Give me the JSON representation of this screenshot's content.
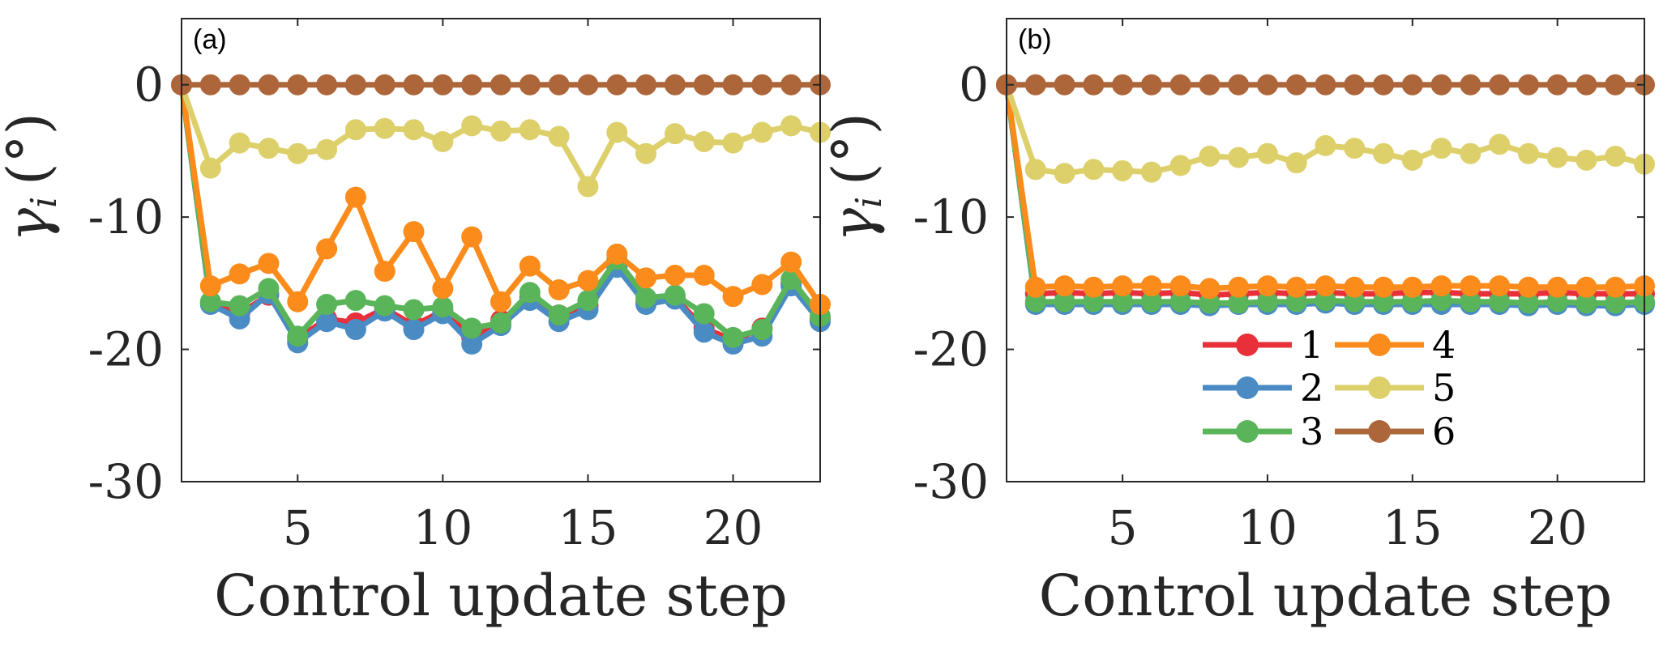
{
  "chart_data": [
    {
      "type": "line",
      "panel_label": "(a)",
      "title": "",
      "xlabel": "Control update step",
      "ylabel": "γ_i (°)",
      "ylabel_main": "γ",
      "ylabel_sub": "i",
      "ylabel_unit": "(°)",
      "xlim": [
        1,
        23
      ],
      "ylim": [
        -30,
        5
      ],
      "xticks": [
        5,
        10,
        15,
        20
      ],
      "xtick_labels": [
        "5",
        "10",
        "15",
        "20"
      ],
      "yticks": [
        0,
        -10,
        -20,
        -30
      ],
      "ytick_labels": [
        "0",
        "-10",
        "-20",
        "-30"
      ],
      "grid": false,
      "legend": false,
      "x": [
        1,
        2,
        3,
        4,
        5,
        6,
        7,
        8,
        9,
        10,
        11,
        12,
        13,
        14,
        15,
        16,
        17,
        18,
        19,
        20,
        21,
        22,
        23
      ],
      "series": [
        {
          "name": "1",
          "color": "#e8303a",
          "values": [
            0,
            -16.5,
            -17.3,
            -15.9,
            -19.2,
            -17.7,
            -18.0,
            -16.9,
            -18.2,
            -17.1,
            -19.1,
            -17.8,
            -16.1,
            -17.4,
            -16.7,
            -13.5,
            -16.4,
            -16.1,
            -18.4,
            -19.3,
            -18.4,
            -15.0,
            -17.7
          ]
        },
        {
          "name": "2",
          "color": "#4a8bc4",
          "values": [
            0,
            -16.6,
            -17.7,
            -15.8,
            -19.5,
            -17.9,
            -18.5,
            -17.1,
            -18.5,
            -17.3,
            -19.6,
            -18.2,
            -16.3,
            -17.9,
            -17.0,
            -13.8,
            -16.6,
            -16.2,
            -18.7,
            -19.6,
            -19.0,
            -15.2,
            -17.9
          ]
        },
        {
          "name": "3",
          "color": "#5ab55a",
          "values": [
            0,
            -16.4,
            -16.7,
            -15.4,
            -19.0,
            -16.6,
            -16.3,
            -16.7,
            -17.0,
            -16.8,
            -18.4,
            -18.0,
            -15.7,
            -17.4,
            -16.3,
            -13.2,
            -16.1,
            -15.9,
            -17.3,
            -19.1,
            -18.5,
            -14.7,
            -17.5
          ]
        },
        {
          "name": "4",
          "color": "#fb8b1a",
          "values": [
            0,
            -15.2,
            -14.3,
            -13.5,
            -16.4,
            -12.4,
            -8.5,
            -14.1,
            -11.1,
            -15.4,
            -11.5,
            -16.4,
            -13.7,
            -15.5,
            -14.8,
            -12.8,
            -14.6,
            -14.4,
            -14.4,
            -16.0,
            -15.1,
            -13.4,
            -16.6
          ]
        },
        {
          "name": "5",
          "color": "#ddd06b",
          "values": [
            0,
            -6.3,
            -4.4,
            -4.8,
            -5.2,
            -4.9,
            -3.4,
            -3.3,
            -3.4,
            -4.3,
            -3.1,
            -3.5,
            -3.4,
            -3.9,
            -7.7,
            -3.6,
            -5.2,
            -3.7,
            -4.3,
            -4.4,
            -3.6,
            -3.1,
            -3.6
          ]
        },
        {
          "name": "6",
          "color": "#ad653a",
          "values": [
            0,
            0,
            0,
            0,
            0,
            0,
            0,
            0,
            0,
            0,
            0,
            0,
            0,
            0,
            0,
            0,
            0,
            0,
            0,
            0,
            0,
            0,
            0
          ]
        }
      ]
    },
    {
      "type": "line",
      "panel_label": "(b)",
      "title": "",
      "xlabel": "Control update step",
      "ylabel": "γ_i (°)",
      "ylabel_main": "γ",
      "ylabel_sub": "i",
      "ylabel_unit": "(°)",
      "xlim": [
        1,
        23
      ],
      "ylim": [
        -30,
        5
      ],
      "xticks": [
        5,
        10,
        15,
        20
      ],
      "xtick_labels": [
        "5",
        "10",
        "15",
        "20"
      ],
      "yticks": [
        0,
        -10,
        -20,
        -30
      ],
      "ytick_labels": [
        "0",
        "-10",
        "-20",
        "-30"
      ],
      "grid": false,
      "legend": true,
      "legend_position": "lower-center",
      "legend_columns": 2,
      "x": [
        1,
        2,
        3,
        4,
        5,
        6,
        7,
        8,
        9,
        10,
        11,
        12,
        13,
        14,
        15,
        16,
        17,
        18,
        19,
        20,
        21,
        22,
        23
      ],
      "series": [
        {
          "name": "1",
          "color": "#e8303a",
          "values": [
            0,
            -15.8,
            -15.7,
            -15.8,
            -15.7,
            -15.8,
            -15.7,
            -15.9,
            -15.8,
            -15.7,
            -15.8,
            -15.7,
            -15.8,
            -15.8,
            -15.7,
            -15.7,
            -15.8,
            -15.8,
            -15.8,
            -15.7,
            -15.8,
            -15.8,
            -15.8
          ]
        },
        {
          "name": "2",
          "color": "#4a8bc4",
          "values": [
            0,
            -16.6,
            -16.6,
            -16.6,
            -16.6,
            -16.6,
            -16.6,
            -16.7,
            -16.6,
            -16.6,
            -16.6,
            -16.5,
            -16.6,
            -16.6,
            -16.6,
            -16.6,
            -16.6,
            -16.6,
            -16.7,
            -16.6,
            -16.7,
            -16.7,
            -16.6
          ]
        },
        {
          "name": "3",
          "color": "#5ab55a",
          "values": [
            0,
            -16.4,
            -16.4,
            -16.4,
            -16.4,
            -16.4,
            -16.4,
            -16.5,
            -16.5,
            -16.4,
            -16.4,
            -16.3,
            -16.4,
            -16.4,
            -16.4,
            -16.3,
            -16.4,
            -16.4,
            -16.5,
            -16.4,
            -16.5,
            -16.5,
            -16.4
          ]
        },
        {
          "name": "4",
          "color": "#fb8b1a",
          "values": [
            0,
            -15.3,
            -15.2,
            -15.3,
            -15.2,
            -15.2,
            -15.2,
            -15.4,
            -15.3,
            -15.2,
            -15.3,
            -15.2,
            -15.3,
            -15.3,
            -15.3,
            -15.2,
            -15.2,
            -15.2,
            -15.3,
            -15.3,
            -15.3,
            -15.3,
            -15.2
          ]
        },
        {
          "name": "5",
          "color": "#ddd06b",
          "values": [
            0,
            -6.4,
            -6.7,
            -6.4,
            -6.5,
            -6.6,
            -6.1,
            -5.4,
            -5.5,
            -5.2,
            -5.9,
            -4.6,
            -4.8,
            -5.2,
            -5.7,
            -4.8,
            -5.2,
            -4.5,
            -5.2,
            -5.5,
            -5.7,
            -5.4,
            -6.0
          ]
        },
        {
          "name": "6",
          "color": "#ad653a",
          "values": [
            0,
            0,
            0,
            0,
            0,
            0,
            0,
            0,
            0,
            0,
            0,
            0,
            0,
            0,
            0,
            0,
            0,
            0,
            0,
            0,
            0,
            0,
            0
          ]
        }
      ]
    }
  ]
}
